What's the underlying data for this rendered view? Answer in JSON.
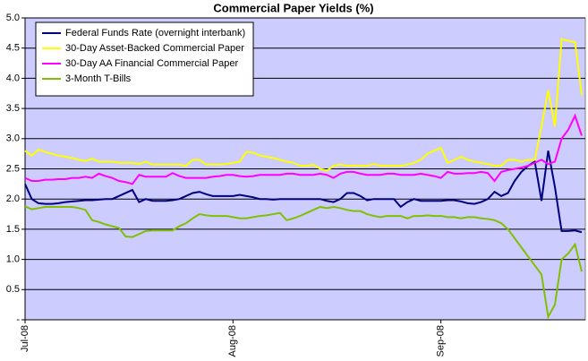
{
  "chart_data": {
    "type": "line",
    "title": "Commercial Paper Yields (%)",
    "categories": [
      "Jul-08",
      null,
      null,
      null,
      null,
      null,
      null,
      null,
      null,
      null,
      null,
      null,
      null,
      null,
      null,
      null,
      null,
      null,
      null,
      null,
      null,
      null,
      null,
      null,
      null,
      null,
      null,
      null,
      null,
      null,
      null,
      "Aug-08",
      null,
      null,
      null,
      null,
      null,
      null,
      null,
      null,
      null,
      null,
      null,
      null,
      null,
      null,
      null,
      null,
      null,
      null,
      null,
      null,
      null,
      null,
      null,
      null,
      null,
      null,
      null,
      null,
      null,
      null,
      "Sep-08",
      null,
      null,
      null,
      null,
      null,
      null,
      null,
      null,
      null,
      null,
      null,
      null,
      null,
      null,
      null,
      null,
      null,
      null,
      null,
      null,
      null
    ],
    "series": [
      {
        "name": "Federal Funds Rate (overnight interbank)",
        "color": "#000080",
        "values": [
          2.25,
          2.0,
          1.93,
          1.92,
          1.92,
          1.93,
          1.95,
          1.96,
          1.97,
          1.98,
          1.98,
          1.99,
          2.0,
          2.0,
          2.05,
          2.1,
          2.15,
          1.95,
          2.0,
          1.97,
          1.97,
          1.97,
          1.98,
          2.0,
          2.05,
          2.1,
          2.12,
          2.08,
          2.05,
          2.05,
          2.05,
          2.05,
          2.07,
          2.05,
          2.03,
          2.0,
          2.0,
          1.99,
          2.0,
          2.0,
          2.0,
          2.0,
          2.0,
          2.0,
          2.0,
          1.97,
          1.95,
          2.0,
          2.1,
          2.1,
          2.05,
          1.98,
          2.0,
          2.0,
          2.0,
          2.0,
          1.87,
          1.95,
          2.0,
          1.97,
          1.97,
          1.97,
          1.97,
          1.98,
          1.98,
          1.96,
          1.93,
          1.92,
          1.95,
          2.0,
          2.12,
          2.05,
          2.1,
          2.3,
          2.45,
          2.55,
          2.62,
          1.97,
          2.8,
          2.2,
          1.47,
          1.47,
          1.48,
          1.45
        ]
      },
      {
        "name": "30-Day Asset-Backed Commercial Paper",
        "color": "#ffff00",
        "values": [
          2.8,
          2.72,
          2.82,
          2.78,
          2.75,
          2.72,
          2.7,
          2.68,
          2.65,
          2.63,
          2.67,
          2.62,
          2.62,
          2.62,
          2.6,
          2.6,
          2.6,
          2.58,
          2.62,
          2.57,
          2.57,
          2.57,
          2.57,
          2.57,
          2.55,
          2.65,
          2.65,
          2.57,
          2.57,
          2.57,
          2.58,
          2.6,
          2.62,
          2.78,
          2.77,
          2.72,
          2.7,
          2.68,
          2.65,
          2.62,
          2.6,
          2.55,
          2.55,
          2.57,
          2.5,
          2.47,
          2.55,
          2.57,
          2.55,
          2.55,
          2.55,
          2.55,
          2.58,
          2.55,
          2.55,
          2.55,
          2.55,
          2.57,
          2.6,
          2.65,
          2.75,
          2.8,
          2.85,
          2.6,
          2.65,
          2.7,
          2.65,
          2.62,
          2.6,
          2.58,
          2.55,
          2.55,
          2.65,
          2.65,
          2.62,
          2.65,
          2.65,
          3.2,
          3.8,
          3.2,
          4.65,
          4.62,
          4.6,
          3.72
        ]
      },
      {
        "name": "30-Day AA Financial Commercial Paper",
        "color": "#ff00ff",
        "values": [
          2.35,
          2.3,
          2.3,
          2.32,
          2.32,
          2.33,
          2.33,
          2.35,
          2.35,
          2.37,
          2.35,
          2.42,
          2.38,
          2.35,
          2.3,
          2.28,
          2.25,
          2.4,
          2.37,
          2.37,
          2.37,
          2.37,
          2.43,
          2.38,
          2.35,
          2.35,
          2.35,
          2.35,
          2.37,
          2.38,
          2.4,
          2.4,
          2.38,
          2.37,
          2.38,
          2.4,
          2.4,
          2.4,
          2.4,
          2.42,
          2.42,
          2.4,
          2.4,
          2.4,
          2.42,
          2.4,
          2.35,
          2.42,
          2.45,
          2.45,
          2.42,
          2.4,
          2.4,
          2.4,
          2.42,
          2.42,
          2.4,
          2.4,
          2.4,
          2.42,
          2.4,
          2.38,
          2.35,
          2.45,
          2.42,
          2.42,
          2.43,
          2.43,
          2.45,
          2.43,
          2.3,
          2.45,
          2.48,
          2.5,
          2.52,
          2.55,
          2.6,
          2.65,
          2.58,
          2.62,
          3.0,
          3.15,
          3.38,
          3.05
        ]
      },
      {
        "name": "3-Month T-Bills",
        "color": "#80c000",
        "values": [
          1.88,
          1.83,
          1.85,
          1.87,
          1.87,
          1.87,
          1.87,
          1.87,
          1.85,
          1.82,
          1.65,
          1.62,
          1.58,
          1.55,
          1.52,
          1.38,
          1.37,
          1.42,
          1.47,
          1.48,
          1.48,
          1.48,
          1.48,
          1.55,
          1.6,
          1.68,
          1.75,
          1.73,
          1.72,
          1.72,
          1.72,
          1.7,
          1.68,
          1.68,
          1.7,
          1.72,
          1.73,
          1.75,
          1.77,
          1.65,
          1.68,
          1.72,
          1.77,
          1.82,
          1.87,
          1.85,
          1.87,
          1.85,
          1.82,
          1.8,
          1.8,
          1.75,
          1.72,
          1.7,
          1.72,
          1.72,
          1.72,
          1.68,
          1.72,
          1.72,
          1.73,
          1.72,
          1.72,
          1.7,
          1.7,
          1.68,
          1.7,
          1.7,
          1.68,
          1.67,
          1.65,
          1.6,
          1.5,
          1.35,
          1.2,
          1.05,
          0.9,
          0.75,
          0.05,
          0.25,
          1.0,
          1.1,
          1.25,
          0.8
        ]
      }
    ],
    "ylim": [
      0,
      5
    ],
    "yticks": [
      {
        "value": 0,
        "label": "-"
      },
      0.5,
      {
        "value": 1,
        "label": "1.0"
      },
      1.5,
      {
        "value": 2,
        "label": "2.0"
      },
      2.5,
      {
        "value": 3,
        "label": "3.0"
      },
      3.5,
      {
        "value": 4,
        "label": "4.0"
      },
      4.5,
      {
        "value": 5,
        "label": "5.0"
      }
    ],
    "grid": true,
    "legend": "upper left",
    "plot_background": "#ccccff"
  }
}
